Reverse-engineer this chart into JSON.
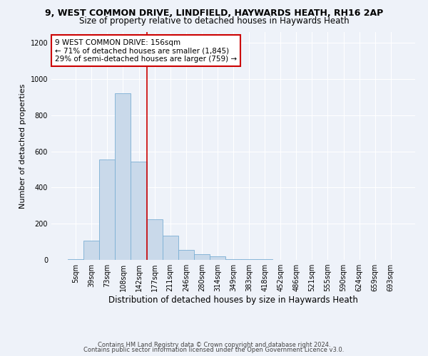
{
  "title1": "9, WEST COMMON DRIVE, LINDFIELD, HAYWARDS HEATH, RH16 2AP",
  "title2": "Size of property relative to detached houses in Haywards Heath",
  "xlabel": "Distribution of detached houses by size in Haywards Heath",
  "ylabel": "Number of detached properties",
  "bin_labels": [
    "5sqm",
    "39sqm",
    "73sqm",
    "108sqm",
    "142sqm",
    "177sqm",
    "211sqm",
    "246sqm",
    "280sqm",
    "314sqm",
    "349sqm",
    "383sqm",
    "418sqm",
    "452sqm",
    "486sqm",
    "521sqm",
    "555sqm",
    "590sqm",
    "624sqm",
    "659sqm",
    "693sqm"
  ],
  "bar_heights": [
    5,
    105,
    555,
    920,
    545,
    225,
    135,
    55,
    30,
    20,
    5,
    2,
    2,
    1,
    1,
    1,
    0,
    0,
    0,
    0,
    0
  ],
  "bar_color": "#c9d9ea",
  "bar_edge_color": "#7bafd4",
  "vline_x": 4.5,
  "vline_color": "#cc0000",
  "annotation_text": "9 WEST COMMON DRIVE: 156sqm\n← 71% of detached houses are smaller (1,845)\n29% of semi-detached houses are larger (759) →",
  "annotation_box_color": "#ffffff",
  "annotation_box_edge": "#cc0000",
  "footer1": "Contains HM Land Registry data © Crown copyright and database right 2024.",
  "footer2": "Contains public sector information licensed under the Open Government Licence v3.0.",
  "ylim": [
    0,
    1260
  ],
  "yticks": [
    0,
    200,
    400,
    600,
    800,
    1000,
    1200
  ],
  "background_color": "#eef2f9",
  "plot_bg_color": "#eef2f9",
  "grid_color": "#ffffff",
  "title1_fontsize": 9,
  "title2_fontsize": 8.5,
  "xlabel_fontsize": 8.5,
  "ylabel_fontsize": 8,
  "tick_fontsize": 7,
  "footer_fontsize": 6,
  "annot_fontsize": 7.5
}
